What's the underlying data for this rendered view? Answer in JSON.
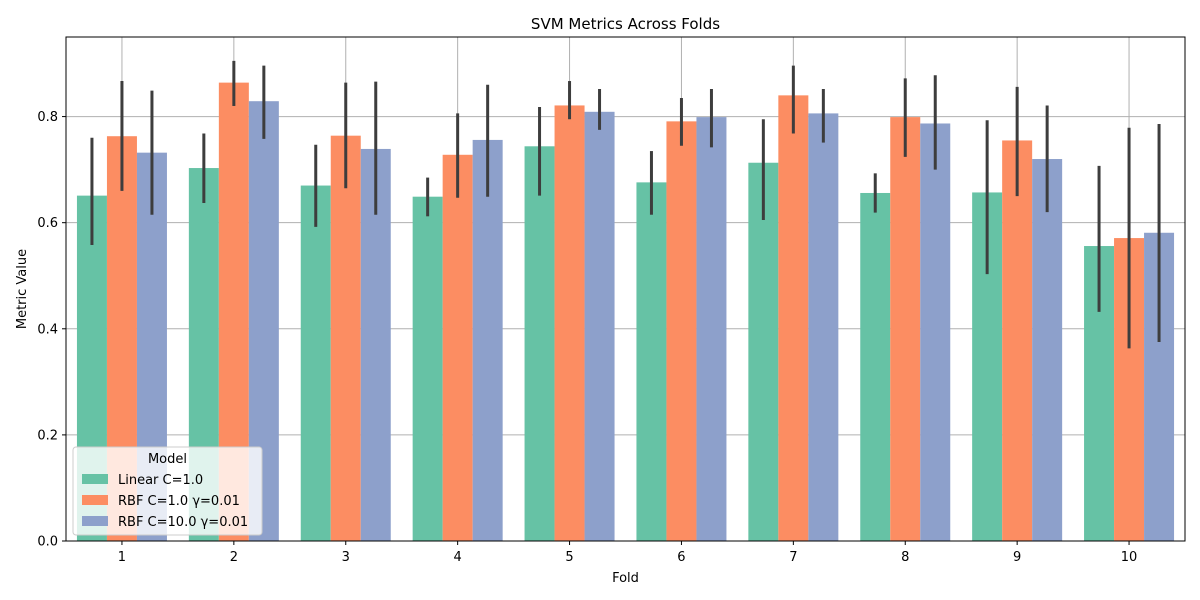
{
  "chart_data": {
    "type": "bar",
    "title": "SVM Metrics Across Folds",
    "xlabel": "Fold",
    "ylabel": "Metric Value",
    "categories": [
      "1",
      "2",
      "3",
      "4",
      "5",
      "6",
      "7",
      "8",
      "9",
      "10"
    ],
    "ylim": [
      0,
      0.95
    ],
    "yticks": [
      0.0,
      0.2,
      0.4,
      0.6,
      0.8
    ],
    "ytick_labels": [
      "0.0",
      "0.2",
      "0.4",
      "0.6",
      "0.8"
    ],
    "grid": true,
    "legend": {
      "title": "Model",
      "placement": "lower-left"
    },
    "series": [
      {
        "name": "Linear C=1.0",
        "color": "#66c2a5",
        "values": [
          0.651,
          0.703,
          0.67,
          0.649,
          0.744,
          0.676,
          0.713,
          0.656,
          0.657,
          0.556
        ],
        "err_low": [
          0.558,
          0.637,
          0.592,
          0.612,
          0.651,
          0.615,
          0.605,
          0.619,
          0.503,
          0.432
        ],
        "err_high": [
          0.76,
          0.768,
          0.747,
          0.685,
          0.818,
          0.735,
          0.795,
          0.693,
          0.793,
          0.707
        ]
      },
      {
        "name": "RBF C=1.0 γ=0.01",
        "color": "#fc8d62",
        "values": [
          0.763,
          0.864,
          0.764,
          0.728,
          0.821,
          0.791,
          0.84,
          0.799,
          0.755,
          0.571
        ],
        "err_low": [
          0.66,
          0.82,
          0.665,
          0.647,
          0.795,
          0.745,
          0.768,
          0.724,
          0.65,
          0.363
        ],
        "err_high": [
          0.867,
          0.905,
          0.864,
          0.806,
          0.867,
          0.835,
          0.896,
          0.872,
          0.856,
          0.779
        ]
      },
      {
        "name": "RBF C=10.0 γ=0.01",
        "color": "#8da0cb",
        "values": [
          0.732,
          0.829,
          0.739,
          0.756,
          0.809,
          0.799,
          0.806,
          0.787,
          0.72,
          0.581
        ],
        "err_low": [
          0.615,
          0.758,
          0.615,
          0.649,
          0.775,
          0.742,
          0.751,
          0.7,
          0.62,
          0.375
        ],
        "err_high": [
          0.849,
          0.896,
          0.866,
          0.86,
          0.852,
          0.852,
          0.852,
          0.878,
          0.821,
          0.786
        ]
      }
    ]
  }
}
